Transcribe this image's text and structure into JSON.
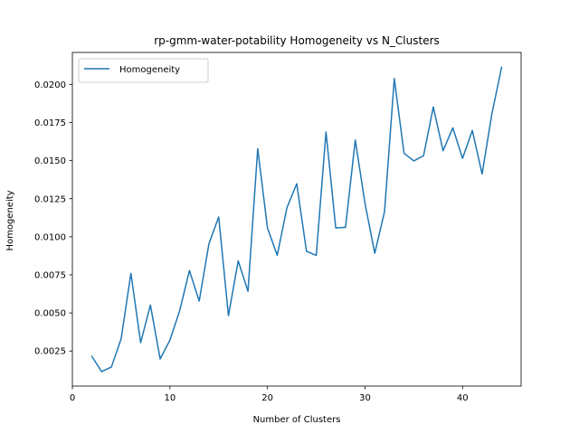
{
  "chart_data": {
    "type": "line",
    "title": "rp-gmm-water-potability Homogeneity vs N_Clusters",
    "xlabel": "Number of Clusters",
    "ylabel": "Homogeneity",
    "xlim": [
      0,
      46
    ],
    "ylim": [
      0.0002,
      0.0221
    ],
    "xticks": [
      0,
      10,
      20,
      30,
      40
    ],
    "yticks": [
      0.0025,
      0.005,
      0.0075,
      0.01,
      0.0125,
      0.015,
      0.0175,
      0.02
    ],
    "ytick_labels": [
      "0.0025",
      "0.0050",
      "0.0075",
      "0.0100",
      "0.0125",
      "0.0150",
      "0.0175",
      "0.0200"
    ],
    "grid": false,
    "legend_position": "top-left",
    "series": [
      {
        "name": "Homogeneity",
        "color": "#1f77b4",
        "x": [
          2,
          3,
          4,
          5,
          6,
          7,
          8,
          9,
          10,
          11,
          12,
          13,
          14,
          15,
          16,
          17,
          18,
          19,
          20,
          21,
          22,
          23,
          24,
          25,
          26,
          27,
          28,
          29,
          30,
          31,
          32,
          33,
          34,
          35,
          36,
          37,
          38,
          39,
          40,
          41,
          42,
          43,
          44
        ],
        "values": [
          0.00215,
          0.00115,
          0.00145,
          0.0033,
          0.0076,
          0.00305,
          0.00552,
          0.00198,
          0.00322,
          0.00515,
          0.00778,
          0.00578,
          0.00955,
          0.0113,
          0.00482,
          0.00842,
          0.00642,
          0.01578,
          0.01058,
          0.00878,
          0.01192,
          0.01348,
          0.00905,
          0.00878,
          0.01688,
          0.01058,
          0.01062,
          0.01635,
          0.01218,
          0.00892,
          0.01165,
          0.02038,
          0.01548,
          0.01498,
          0.01532,
          0.01852,
          0.01565,
          0.01715,
          0.01515,
          0.01698,
          0.01412,
          0.01805,
          0.02112
        ]
      }
    ]
  }
}
